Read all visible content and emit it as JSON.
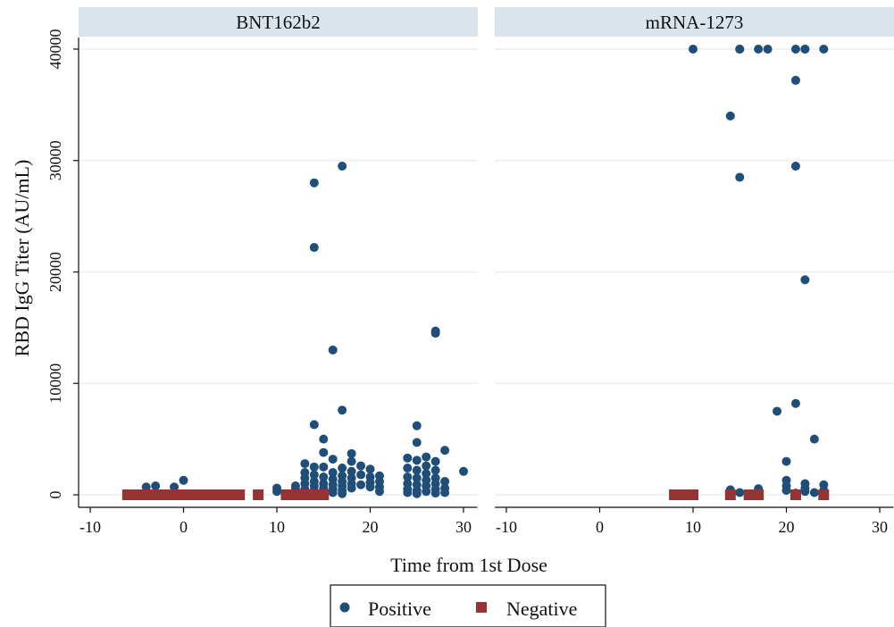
{
  "chart_data": {
    "type": "scatter",
    "xlabel": "Time from 1st Dose",
    "ylabel": "RBD IgG Titer (AU/mL)",
    "xlim": [
      -10,
      32
    ],
    "ylim": [
      -1500,
      41000
    ],
    "x_ticks": [
      -10,
      0,
      10,
      20,
      30
    ],
    "y_ticks": [
      0,
      10000,
      20000,
      30000,
      40000
    ],
    "x_tick_labels": [
      "-10",
      "0",
      "10",
      "20",
      "30"
    ],
    "y_tick_labels": [
      "0",
      "10000",
      "20000",
      "30000",
      "40000"
    ],
    "grid": true,
    "legend_position": "bottom-center",
    "colors": {
      "Positive": "#1f4e79",
      "Negative": "#943434",
      "header": "#d9e4ec"
    },
    "legend": [
      {
        "label": "Positive",
        "marker": "circle"
      },
      {
        "label": "Negative",
        "marker": "square"
      }
    ],
    "panels": [
      {
        "title": "BNT162b2",
        "series": [
          {
            "name": "Positive",
            "points": [
              [
                -4,
                700
              ],
              [
                -3,
                800
              ],
              [
                -1,
                700
              ],
              [
                0,
                1300
              ],
              [
                10,
                600
              ],
              [
                10,
                300
              ],
              [
                12,
                800
              ],
              [
                12,
                500
              ],
              [
                12,
                200
              ],
              [
                13,
                2800
              ],
              [
                13,
                2000
              ],
              [
                13,
                1500
              ],
              [
                13,
                1000
              ],
              [
                13,
                500
              ],
              [
                13,
                200
              ],
              [
                14,
                28000
              ],
              [
                14,
                22200
              ],
              [
                14,
                6300
              ],
              [
                14,
                2500
              ],
              [
                14,
                1800
              ],
              [
                14,
                1200
              ],
              [
                14,
                800
              ],
              [
                14,
                400
              ],
              [
                14,
                100
              ],
              [
                15,
                5000
              ],
              [
                15,
                3800
              ],
              [
                15,
                2500
              ],
              [
                15,
                1600
              ],
              [
                15,
                1000
              ],
              [
                15,
                600
              ],
              [
                15,
                200
              ],
              [
                16,
                13000
              ],
              [
                16,
                3200
              ],
              [
                16,
                2000
              ],
              [
                16,
                1400
              ],
              [
                16,
                900
              ],
              [
                16,
                500
              ],
              [
                16,
                200
              ],
              [
                17,
                29500
              ],
              [
                17,
                7600
              ],
              [
                17,
                2400
              ],
              [
                17,
                1700
              ],
              [
                17,
                1200
              ],
              [
                17,
                800
              ],
              [
                17,
                400
              ],
              [
                17,
                100
              ],
              [
                18,
                3700
              ],
              [
                18,
                3000
              ],
              [
                18,
                2100
              ],
              [
                18,
                1500
              ],
              [
                18,
                1000
              ],
              [
                18,
                600
              ],
              [
                19,
                2600
              ],
              [
                19,
                1800
              ],
              [
                19,
                900
              ],
              [
                20,
                2300
              ],
              [
                20,
                1600
              ],
              [
                20,
                1100
              ],
              [
                20,
                700
              ],
              [
                21,
                1700
              ],
              [
                21,
                1200
              ],
              [
                21,
                700
              ],
              [
                21,
                300
              ],
              [
                24,
                3300
              ],
              [
                24,
                2400
              ],
              [
                24,
                1600
              ],
              [
                24,
                1000
              ],
              [
                24,
                500
              ],
              [
                24,
                200
              ],
              [
                25,
                6200
              ],
              [
                25,
                4700
              ],
              [
                25,
                3100
              ],
              [
                25,
                2200
              ],
              [
                25,
                1500
              ],
              [
                25,
                900
              ],
              [
                25,
                400
              ],
              [
                25,
                100
              ],
              [
                26,
                3400
              ],
              [
                26,
                2600
              ],
              [
                26,
                1900
              ],
              [
                26,
                1300
              ],
              [
                26,
                800
              ],
              [
                26,
                300
              ],
              [
                27,
                14700
              ],
              [
                27,
                14500
              ],
              [
                27,
                3000
              ],
              [
                27,
                2200
              ],
              [
                27,
                1500
              ],
              [
                27,
                1000
              ],
              [
                27,
                500
              ],
              [
                27,
                150
              ],
              [
                28,
                4000
              ],
              [
                28,
                1200
              ],
              [
                28,
                600
              ],
              [
                28,
                200
              ],
              [
                30,
                2100
              ]
            ]
          },
          {
            "name": "Negative",
            "points": [
              [
                -6,
                0
              ],
              [
                -5,
                0
              ],
              [
                -4,
                0
              ],
              [
                -3,
                0
              ],
              [
                -2,
                0
              ],
              [
                -1,
                0
              ],
              [
                0,
                0
              ],
              [
                1,
                0
              ],
              [
                2,
                0
              ],
              [
                3,
                0
              ],
              [
                4,
                0
              ],
              [
                5,
                0
              ],
              [
                6,
                0
              ],
              [
                8,
                0
              ],
              [
                11,
                0
              ],
              [
                12,
                0
              ],
              [
                13,
                0
              ],
              [
                14,
                0
              ],
              [
                15,
                0
              ]
            ]
          }
        ]
      },
      {
        "title": "mRNA-1273",
        "series": [
          {
            "name": "Positive",
            "points": [
              [
                10,
                40000
              ],
              [
                15,
                40000
              ],
              [
                15,
                40000
              ],
              [
                17,
                40000
              ],
              [
                18,
                40000
              ],
              [
                21,
                40000
              ],
              [
                22,
                40000
              ],
              [
                22,
                40000
              ],
              [
                24,
                40000
              ],
              [
                21,
                37200
              ],
              [
                14,
                34000
              ],
              [
                21,
                29500
              ],
              [
                15,
                28500
              ],
              [
                22,
                19300
              ],
              [
                21,
                8200
              ],
              [
                19,
                7500
              ],
              [
                23,
                5000
              ],
              [
                20,
                3000
              ],
              [
                20,
                1300
              ],
              [
                20,
                800
              ],
              [
                20,
                400
              ],
              [
                22,
                1000
              ],
              [
                22,
                600
              ],
              [
                22,
                300
              ],
              [
                24,
                900
              ],
              [
                24,
                400
              ],
              [
                14,
                450
              ],
              [
                15,
                200
              ],
              [
                17,
                550
              ],
              [
                23,
                200
              ],
              [
                21,
                150
              ]
            ]
          },
          {
            "name": "Negative",
            "points": [
              [
                8,
                0
              ],
              [
                9,
                0
              ],
              [
                10,
                0
              ],
              [
                14,
                0
              ],
              [
                16,
                0
              ],
              [
                17,
                0
              ],
              [
                21,
                0
              ],
              [
                24,
                0
              ]
            ]
          }
        ]
      }
    ]
  }
}
